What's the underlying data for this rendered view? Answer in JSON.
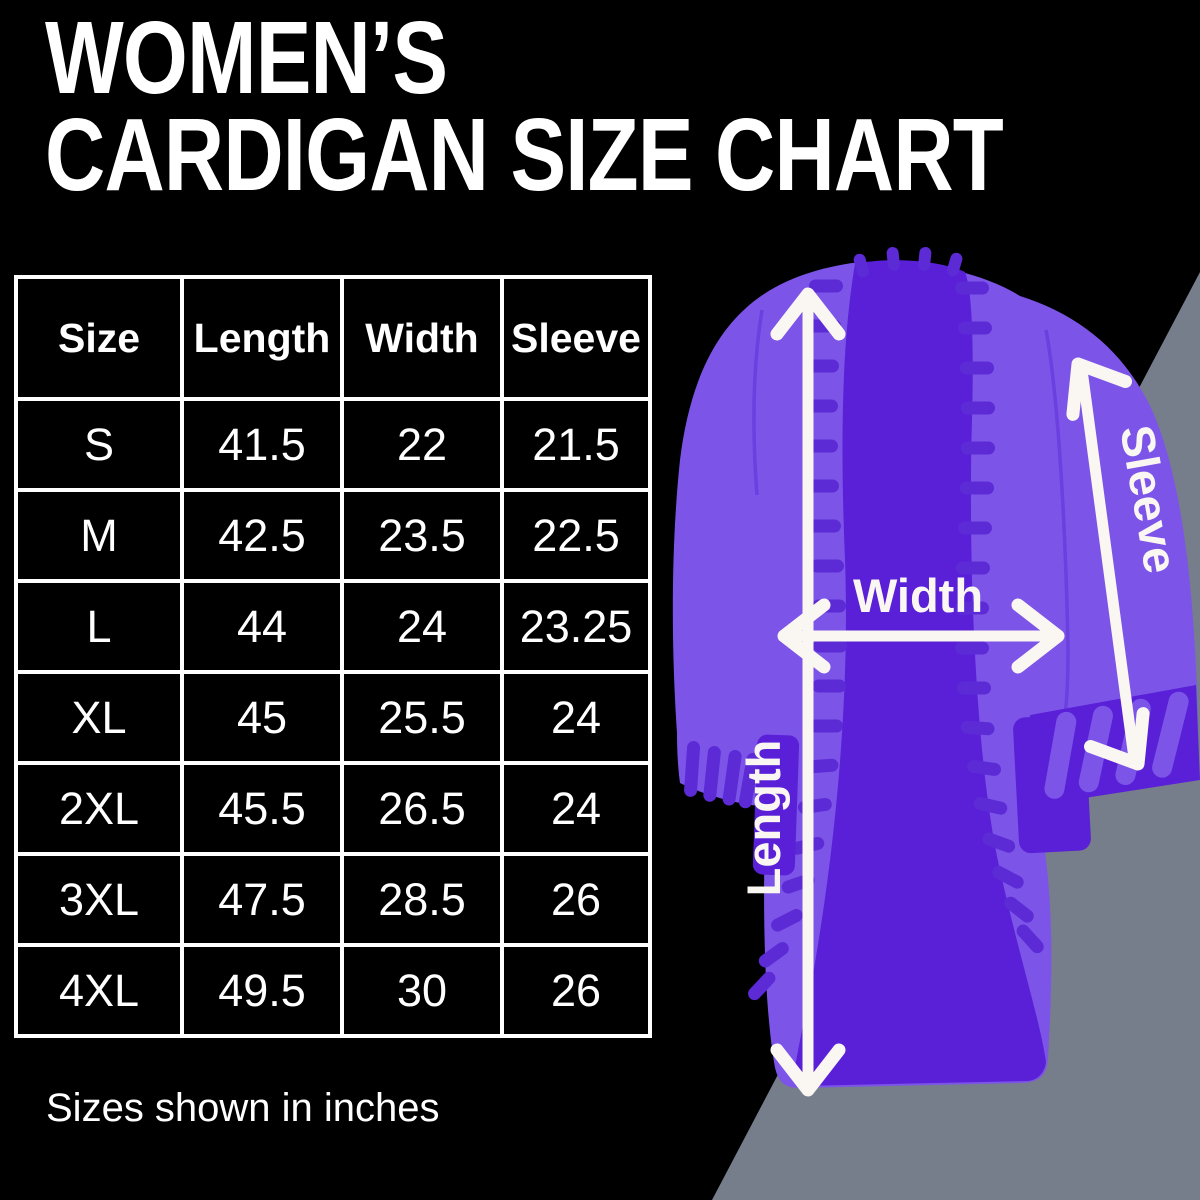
{
  "title": {
    "line1": "WOMEN’S",
    "line2": "CARDIGAN SIZE CHART"
  },
  "table": {
    "headers": [
      "Size",
      "Length",
      "Width",
      "Sleeve"
    ],
    "rows": [
      {
        "size": "S",
        "length": "41.5",
        "width": "22",
        "sleeve": "21.5"
      },
      {
        "size": "M",
        "length": "42.5",
        "width": "23.5",
        "sleeve": "22.5"
      },
      {
        "size": "L",
        "length": "44",
        "width": "24",
        "sleeve": "23.25"
      },
      {
        "size": "XL",
        "length": "45",
        "width": "25.5",
        "sleeve": "24"
      },
      {
        "size": "2XL",
        "length": "45.5",
        "width": "26.5",
        "sleeve": "24"
      },
      {
        "size": "3XL",
        "length": "47.5",
        "width": "28.5",
        "sleeve": "26"
      },
      {
        "size": "4XL",
        "length": "49.5",
        "width": "30",
        "sleeve": "26"
      }
    ],
    "units_note": "Sizes shown in inches"
  },
  "diagram": {
    "label_length": "Length",
    "label_width": "Width",
    "label_sleeve": "Sleeve"
  },
  "colors": {
    "background": "#000000",
    "text": "#ffffff",
    "cardigan_body": "#7c55e8",
    "cardigan_inner": "#5a20d8",
    "cardigan_trim": "#5c2bd6",
    "corner_gray": "#777e8b",
    "arrow": "#faf6f1"
  },
  "chart_data": {
    "type": "table",
    "title": "WOMEN'S CARDIGAN SIZE CHART",
    "columns": [
      "Size",
      "Length",
      "Width",
      "Sleeve"
    ],
    "rows": [
      [
        "S",
        41.5,
        22,
        21.5
      ],
      [
        "M",
        42.5,
        23.5,
        22.5
      ],
      [
        "L",
        44,
        24,
        23.25
      ],
      [
        "XL",
        45,
        25.5,
        24
      ],
      [
        "2XL",
        45.5,
        26.5,
        24
      ],
      [
        "3XL",
        47.5,
        28.5,
        26
      ],
      [
        "4XL",
        49.5,
        30,
        26
      ]
    ],
    "units": "inches"
  }
}
